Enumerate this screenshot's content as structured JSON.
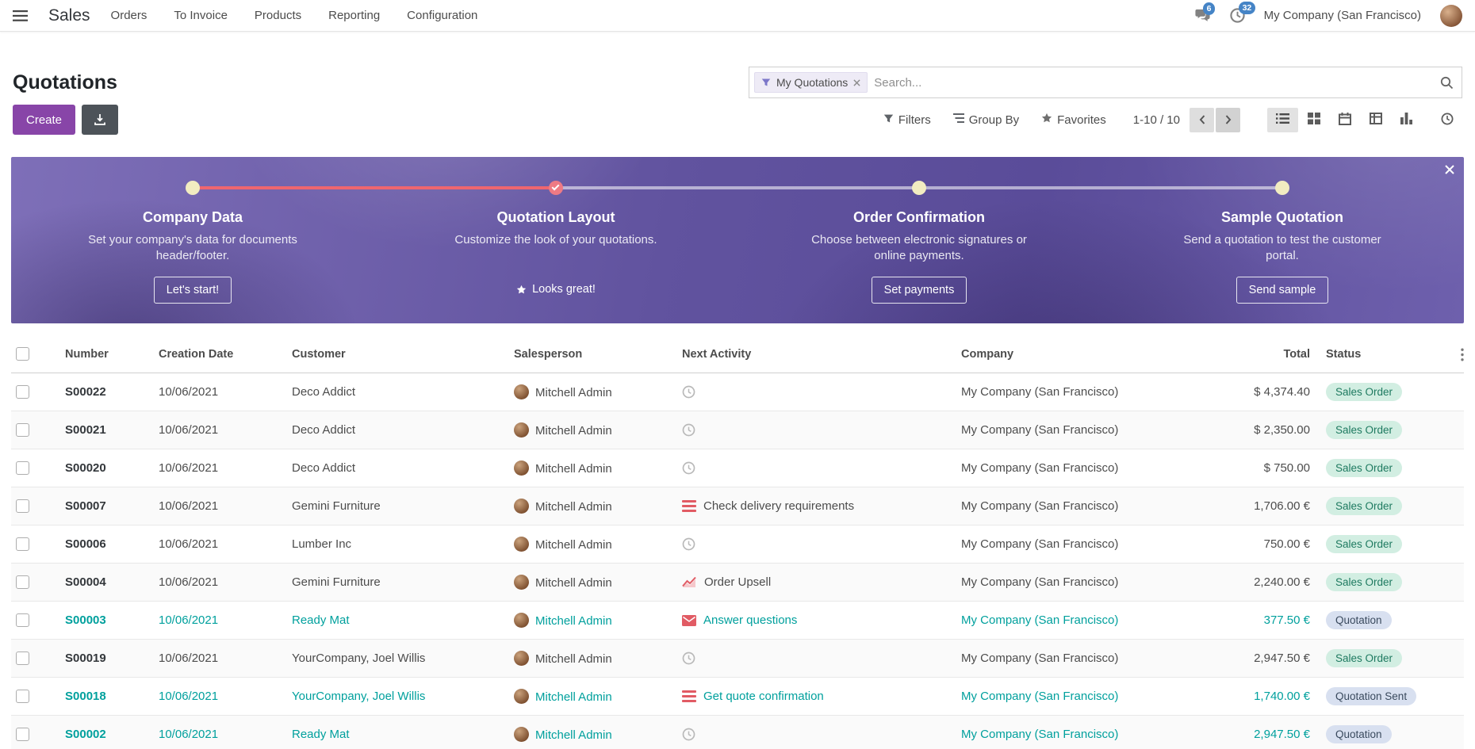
{
  "nav": {
    "app_name": "Sales",
    "menu_items": [
      "Orders",
      "To Invoice",
      "Products",
      "Reporting",
      "Configuration"
    ],
    "messages_badge": "6",
    "activities_badge": "32",
    "company": "My Company (San Francisco)"
  },
  "control_panel": {
    "title": "Quotations",
    "search_facet": "My Quotations",
    "search_placeholder": "Search...",
    "create_label": "Create",
    "filter_buttons": [
      {
        "icon": "filter",
        "label": "Filters"
      },
      {
        "icon": "group",
        "label": "Group By"
      },
      {
        "icon": "star",
        "label": "Favorites"
      }
    ],
    "pager": "1-10 / 10",
    "view_switcher": [
      {
        "icon": "list",
        "active": true
      },
      {
        "icon": "kanban",
        "active": false
      },
      {
        "icon": "calendar",
        "active": false
      },
      {
        "icon": "pivot",
        "active": false
      },
      {
        "icon": "graph",
        "active": false
      },
      {
        "icon": "activity",
        "active": false
      }
    ]
  },
  "banner": {
    "steps": [
      {
        "title": "Company Data",
        "description": "Set your company's data for documents header/footer.",
        "button": "Let's start!",
        "state": "todo"
      },
      {
        "title": "Quotation Layout",
        "description": "Customize the look of your quotations.",
        "button": "Looks great!",
        "state": "done"
      },
      {
        "title": "Order Confirmation",
        "description": "Choose between electronic signatures or online payments.",
        "button": "Set payments",
        "state": "todo"
      },
      {
        "title": "Sample Quotation",
        "description": "Send a quotation to test the customer portal.",
        "button": "Send sample",
        "state": "todo"
      }
    ]
  },
  "table": {
    "columns": [
      "Number",
      "Creation Date",
      "Customer",
      "Salesperson",
      "Next Activity",
      "Company",
      "Total",
      "Status"
    ],
    "rows": [
      {
        "number": "S00022",
        "date": "10/06/2021",
        "customer": "Deco Addict",
        "salesperson": "Mitchell Admin",
        "activity_icon": "clock-icon",
        "activity_text": "",
        "company": "My Company (San Francisco)",
        "total": "$ 4,374.40",
        "status": "Sales Order",
        "badge": "success",
        "highlight": false
      },
      {
        "number": "S00021",
        "date": "10/06/2021",
        "customer": "Deco Addict",
        "salesperson": "Mitchell Admin",
        "activity_icon": "clock-icon",
        "activity_text": "",
        "company": "My Company (San Francisco)",
        "total": "$ 2,350.00",
        "status": "Sales Order",
        "badge": "success",
        "highlight": false
      },
      {
        "number": "S00020",
        "date": "10/06/2021",
        "customer": "Deco Addict",
        "salesperson": "Mitchell Admin",
        "activity_icon": "clock-icon",
        "activity_text": "",
        "company": "My Company (San Francisco)",
        "total": "$ 750.00",
        "status": "Sales Order",
        "badge": "success",
        "highlight": false
      },
      {
        "number": "S00007",
        "date": "10/06/2021",
        "customer": "Gemini Furniture",
        "salesperson": "Mitchell Admin",
        "activity_icon": "list-icon",
        "activity_text": "Check delivery requirements",
        "company": "My Company (San Francisco)",
        "total": "1,706.00 €",
        "status": "Sales Order",
        "badge": "success",
        "highlight": false
      },
      {
        "number": "S00006",
        "date": "10/06/2021",
        "customer": "Lumber Inc",
        "salesperson": "Mitchell Admin",
        "activity_icon": "clock-icon",
        "activity_text": "",
        "company": "My Company (San Francisco)",
        "total": "750.00 €",
        "status": "Sales Order",
        "badge": "success",
        "highlight": false
      },
      {
        "number": "S00004",
        "date": "10/06/2021",
        "customer": "Gemini Furniture",
        "salesperson": "Mitchell Admin",
        "activity_icon": "chart-icon",
        "activity_text": "Order Upsell",
        "company": "My Company (San Francisco)",
        "total": "2,240.00 €",
        "status": "Sales Order",
        "badge": "success",
        "highlight": false
      },
      {
        "number": "S00003",
        "date": "10/06/2021",
        "customer": "Ready Mat",
        "salesperson": "Mitchell Admin",
        "activity_icon": "envelope-icon",
        "activity_text": "Answer questions",
        "company": "My Company (San Francisco)",
        "total": "377.50 €",
        "status": "Quotation",
        "badge": "info",
        "highlight": true
      },
      {
        "number": "S00019",
        "date": "10/06/2021",
        "customer": "YourCompany, Joel Willis",
        "salesperson": "Mitchell Admin",
        "activity_icon": "clock-icon",
        "activity_text": "",
        "company": "My Company (San Francisco)",
        "total": "2,947.50 €",
        "status": "Sales Order",
        "badge": "success",
        "highlight": false
      },
      {
        "number": "S00018",
        "date": "10/06/2021",
        "customer": "YourCompany, Joel Willis",
        "salesperson": "Mitchell Admin",
        "activity_icon": "list-icon",
        "activity_text": "Get quote confirmation",
        "company": "My Company (San Francisco)",
        "total": "1,740.00 €",
        "status": "Quotation Sent",
        "badge": "info",
        "highlight": true
      },
      {
        "number": "S00002",
        "date": "10/06/2021",
        "customer": "Ready Mat",
        "salesperson": "Mitchell Admin",
        "activity_icon": "clock-icon",
        "activity_text": "",
        "company": "My Company (San Francisco)",
        "total": "2,947.50 €",
        "status": "Quotation",
        "badge": "info",
        "highlight": true
      }
    ]
  },
  "colors": {
    "accent_purple": "#8845a8",
    "teal_link": "#00a09d",
    "banner_purple": "#61539f",
    "activity_red": "#e15b64",
    "badge_success_bg": "#d2eee2",
    "badge_info_bg": "#d8e0f0"
  }
}
